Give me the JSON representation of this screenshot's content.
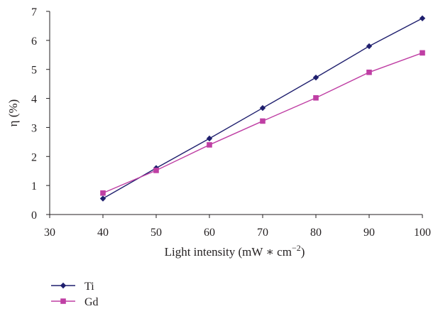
{
  "chart_data": {
    "type": "line",
    "x": [
      40,
      50,
      60,
      70,
      80,
      90,
      100
    ],
    "series": [
      {
        "name": "Ti",
        "values": [
          0.55,
          1.6,
          2.62,
          3.67,
          4.72,
          5.8,
          6.76
        ],
        "color": "#1f1f6e",
        "marker": "diamond"
      },
      {
        "name": "Gd",
        "values": [
          0.74,
          1.52,
          2.4,
          3.22,
          4.02,
          4.9,
          5.57
        ],
        "color": "#bf3fa4",
        "marker": "square"
      }
    ],
    "xlim": [
      30,
      100
    ],
    "ylim": [
      0,
      7
    ],
    "xticks": [
      30,
      40,
      50,
      60,
      70,
      80,
      90,
      100
    ],
    "yticks": [
      0,
      1,
      2,
      3,
      4,
      5,
      6,
      7
    ],
    "xlabel": "Light intensity (mW ∗ cm",
    "xlabel_superscript": "−2",
    "xlabel_suffix": ")",
    "ylabel": "η (%)",
    "grid": false,
    "legend_position": "bottom-left"
  }
}
